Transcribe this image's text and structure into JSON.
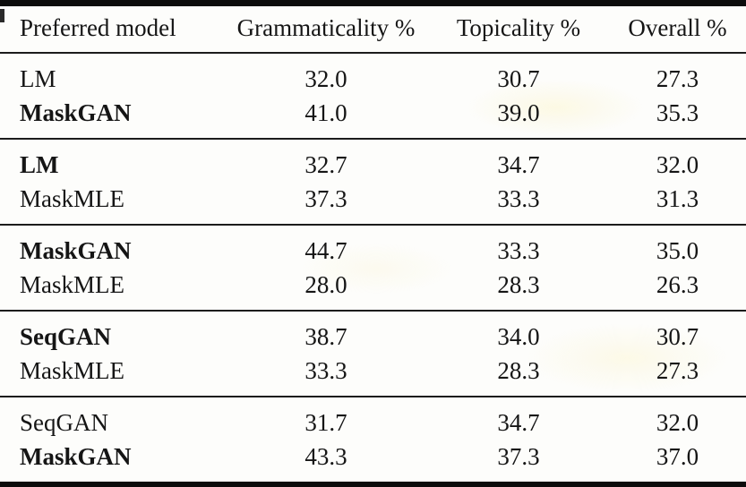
{
  "page": {
    "background": "#fdfdfb",
    "rule_color": "#0c0c0c",
    "text_color": "#151515"
  },
  "table": {
    "columns": [
      "Preferred model",
      "Grammaticality %",
      "Topicality %",
      "Overall %"
    ],
    "groups": [
      {
        "rows": [
          {
            "model": "LM",
            "bold": false,
            "grammaticality": "32.0",
            "topicality": "30.7",
            "overall": "27.3"
          },
          {
            "model": "MaskGAN",
            "bold": true,
            "grammaticality": "41.0",
            "topicality": "39.0",
            "overall": "35.3"
          }
        ]
      },
      {
        "rows": [
          {
            "model": "LM",
            "bold": true,
            "grammaticality": "32.7",
            "topicality": "34.7",
            "overall": "32.0"
          },
          {
            "model": "MaskMLE",
            "bold": false,
            "grammaticality": "37.3",
            "topicality": "33.3",
            "overall": "31.3"
          }
        ]
      },
      {
        "rows": [
          {
            "model": "MaskGAN",
            "bold": true,
            "grammaticality": "44.7",
            "topicality": "33.3",
            "overall": "35.0"
          },
          {
            "model": "MaskMLE",
            "bold": false,
            "grammaticality": "28.0",
            "topicality": "28.3",
            "overall": "26.3"
          }
        ]
      },
      {
        "rows": [
          {
            "model": "SeqGAN",
            "bold": true,
            "grammaticality": "38.7",
            "topicality": "34.0",
            "overall": "30.7"
          },
          {
            "model": "MaskMLE",
            "bold": false,
            "grammaticality": "33.3",
            "topicality": "28.3",
            "overall": "27.3"
          }
        ]
      },
      {
        "rows": [
          {
            "model": "SeqGAN",
            "bold": false,
            "grammaticality": "31.7",
            "topicality": "34.7",
            "overall": "32.0"
          },
          {
            "model": "MaskGAN",
            "bold": true,
            "grammaticality": "43.3",
            "topicality": "37.3",
            "overall": "37.0"
          }
        ]
      }
    ]
  }
}
